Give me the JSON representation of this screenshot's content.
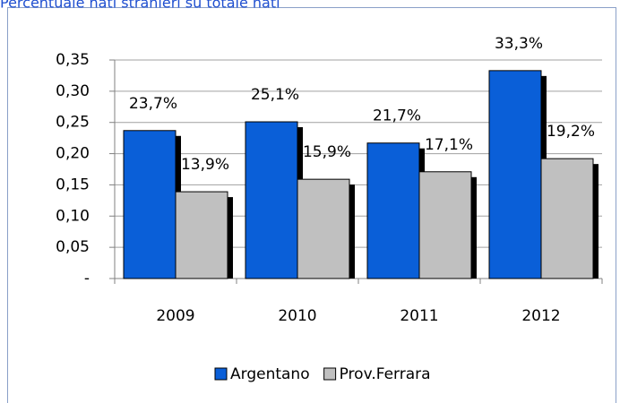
{
  "chart_data": {
    "type": "bar",
    "title": "Percentuale nati stranieri su totale nati",
    "categories": [
      "2009",
      "2010",
      "2011",
      "2012"
    ],
    "series": [
      {
        "name": "Argentano",
        "color": "#0a5fd8",
        "values": [
          0.237,
          0.251,
          0.217,
          0.333
        ],
        "value_labels": [
          "23,7%",
          "25,1%",
          "21,7%",
          "33,3%"
        ]
      },
      {
        "name": "Prov.Ferrara",
        "color": "#c0c0c0",
        "values": [
          0.139,
          0.159,
          0.171,
          0.192
        ],
        "value_labels": [
          "13,9%",
          "15,9%",
          "17,1%",
          "19,2%"
        ]
      }
    ],
    "ylim": [
      0,
      0.35
    ],
    "yticks": [
      {
        "value": 0,
        "label": "-"
      },
      {
        "value": 0.05,
        "label": "0,05"
      },
      {
        "value": 0.1,
        "label": "0,10"
      },
      {
        "value": 0.15,
        "label": "0,15"
      },
      {
        "value": 0.2,
        "label": "0,20"
      },
      {
        "value": 0.25,
        "label": "0,25"
      },
      {
        "value": 0.3,
        "label": "0,30"
      },
      {
        "value": 0.35,
        "label": "0,35"
      }
    ],
    "grid": true,
    "legend": "bottom"
  }
}
